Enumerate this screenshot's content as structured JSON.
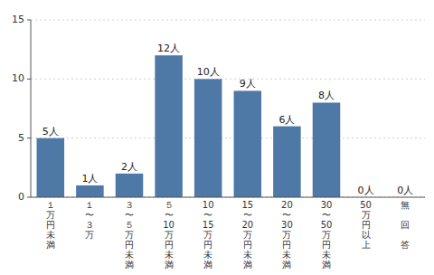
{
  "chart_data": {
    "type": "bar",
    "categories": [
      "１\n万\n円\n未\n満",
      "１\n〜\n３\n万",
      "３\n〜\n５\n万\n円\n未\n満",
      "５\n〜\n10\n万\n円\n未\n満",
      "10\n〜\n15\n万\n円\n未\n満",
      "15\n〜\n20\n万\n円\n未\n満",
      "20\n〜\n30\n万\n円\n未\n満",
      "30\n〜\n50\n万\n円\n未\n満",
      "50\n万\n円\n以\n上",
      "無\n\n回\n\n答"
    ],
    "values": [
      5,
      1,
      2,
      12,
      10,
      9,
      6,
      8,
      0,
      0
    ],
    "value_labels": [
      "5人",
      "1人",
      "2人",
      "12人",
      "10人",
      "9人",
      "6人",
      "8人",
      "0人",
      "0人"
    ],
    "data_labels": true,
    "color": "#4e79a7",
    "ylim": [
      0,
      15
    ],
    "yticks": [
      0,
      5,
      10,
      15
    ],
    "grid": true
  }
}
